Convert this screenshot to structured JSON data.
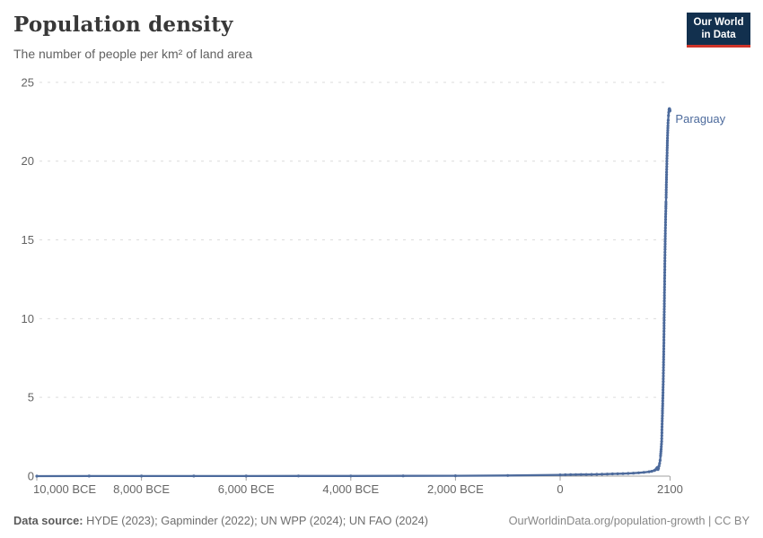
{
  "header": {
    "title": "Population density",
    "subtitle": "The number of people per km² of land area"
  },
  "logo": {
    "line1": "Our World",
    "line2": "in Data",
    "bg_color": "#12304e",
    "bar_color": "#cf342a"
  },
  "footer": {
    "source_label": "Data source:",
    "source_text": " HYDE (2023); Gapminder (2022); UN WPP (2024); UN FAO (2024)",
    "credit": "OurWorldinData.org/population-growth | CC BY"
  },
  "chart_data": {
    "type": "line",
    "title": "Population density",
    "subtitle": "The number of people per km² of land area",
    "xlabel": "",
    "ylabel": "people per km² of land area",
    "xlim": [
      -10000,
      2100
    ],
    "ylim": [
      0,
      25
    ],
    "grid": "horizontal-dashed",
    "grid_color": "#dcdcdc",
    "axis_color": "#a1a1a1",
    "tick_label_color": "#666666",
    "legend_position": "end-of-line-label",
    "y_ticks": [
      {
        "value": 0,
        "label": "0"
      },
      {
        "value": 5,
        "label": "5"
      },
      {
        "value": 10,
        "label": "10"
      },
      {
        "value": 15,
        "label": "15"
      },
      {
        "value": 20,
        "label": "20"
      },
      {
        "value": 25,
        "label": "25"
      }
    ],
    "x_ticks": [
      {
        "value": -10000,
        "label": "10,000 BCE"
      },
      {
        "value": -8000,
        "label": "8,000 BCE"
      },
      {
        "value": -6000,
        "label": "6,000 BCE"
      },
      {
        "value": -4000,
        "label": "4,000 BCE"
      },
      {
        "value": -2000,
        "label": "2,000 BCE"
      },
      {
        "value": 0,
        "label": "0"
      },
      {
        "value": 2100,
        "label": "2100"
      }
    ],
    "series": [
      {
        "name": "Paraguay",
        "color": "#4c6a9c",
        "points": [
          [
            -10000,
            0.002
          ],
          [
            -9000,
            0.003
          ],
          [
            -8000,
            0.004
          ],
          [
            -7000,
            0.005
          ],
          [
            -6000,
            0.007
          ],
          [
            -5000,
            0.009
          ],
          [
            -4000,
            0.012
          ],
          [
            -3000,
            0.017
          ],
          [
            -2000,
            0.025
          ],
          [
            -1000,
            0.04
          ],
          [
            0,
            0.08
          ],
          [
            100,
            0.085
          ],
          [
            200,
            0.09
          ],
          [
            300,
            0.095
          ],
          [
            400,
            0.1
          ],
          [
            500,
            0.105
          ],
          [
            600,
            0.11
          ],
          [
            700,
            0.115
          ],
          [
            800,
            0.12
          ],
          [
            900,
            0.13
          ],
          [
            1000,
            0.14
          ],
          [
            1100,
            0.15
          ],
          [
            1200,
            0.16
          ],
          [
            1300,
            0.17
          ],
          [
            1400,
            0.19
          ],
          [
            1500,
            0.21
          ],
          [
            1600,
            0.24
          ],
          [
            1700,
            0.28
          ],
          [
            1750,
            0.31
          ],
          [
            1800,
            0.36
          ],
          [
            1820,
            0.4
          ],
          [
            1840,
            0.47
          ],
          [
            1850,
            0.52
          ],
          [
            1860,
            0.55
          ],
          [
            1870,
            0.42
          ],
          [
            1880,
            0.5
          ],
          [
            1890,
            0.65
          ],
          [
            1900,
            0.8
          ],
          [
            1910,
            1.0
          ],
          [
            1920,
            1.3
          ],
          [
            1930,
            1.7
          ],
          [
            1940,
            2.2
          ],
          [
            1950,
            3.5
          ],
          [
            1955,
            4.0
          ],
          [
            1960,
            4.6
          ],
          [
            1965,
            5.3
          ],
          [
            1970,
            6.0
          ],
          [
            1975,
            6.9
          ],
          [
            1980,
            7.9
          ],
          [
            1985,
            9.2
          ],
          [
            1990,
            10.6
          ],
          [
            1995,
            12.0
          ],
          [
            2000,
            13.3
          ],
          [
            2005,
            14.4
          ],
          [
            2010,
            15.4
          ],
          [
            2015,
            16.3
          ],
          [
            2020,
            17.0
          ],
          [
            2023,
            17.4
          ],
          [
            2025,
            17.7
          ],
          [
            2030,
            18.5
          ],
          [
            2035,
            19.3
          ],
          [
            2040,
            20.0
          ],
          [
            2045,
            20.7
          ],
          [
            2050,
            21.3
          ],
          [
            2055,
            21.8
          ],
          [
            2060,
            22.25
          ],
          [
            2065,
            22.6
          ],
          [
            2070,
            22.9
          ],
          [
            2075,
            23.1
          ],
          [
            2080,
            23.25
          ],
          [
            2085,
            23.32
          ],
          [
            2090,
            23.33
          ],
          [
            2095,
            23.28
          ],
          [
            2100,
            23.2
          ]
        ]
      }
    ]
  }
}
